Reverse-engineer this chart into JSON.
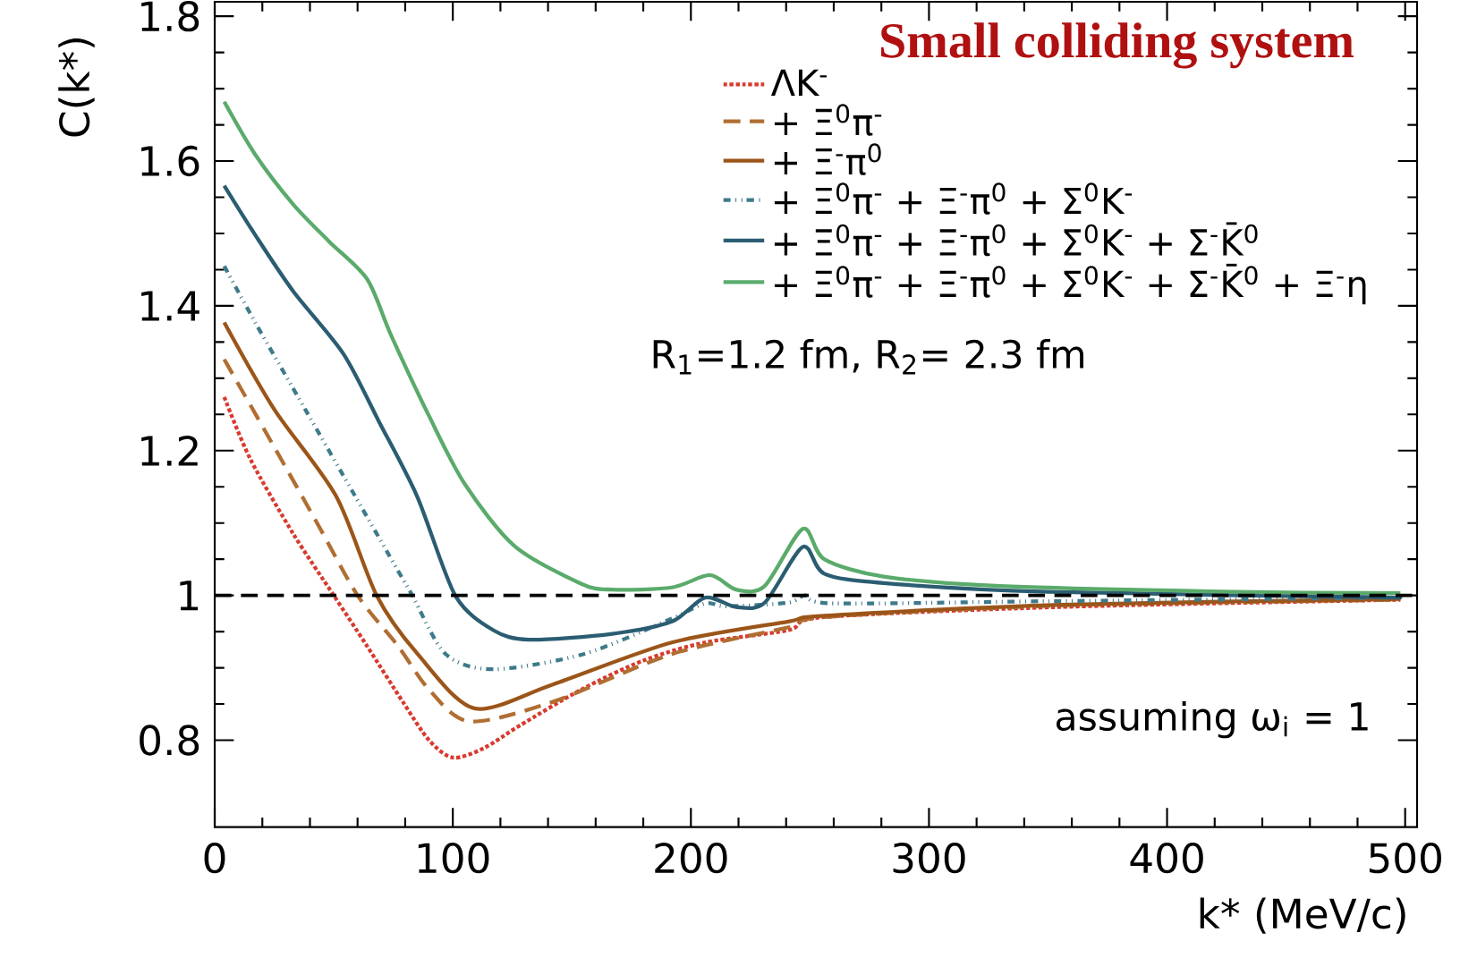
{
  "chart_data": {
    "type": "line",
    "title": "Small colliding system",
    "xlabel": "k* (MeV/c)",
    "ylabel": "C(k*)",
    "annotations": [
      "R$_{1}$=1.2 fm, R$_{2}$= 2.3 fm",
      "assuming ω$_{i}$ = 1"
    ],
    "xlim": [
      0,
      505
    ],
    "ylim": [
      0.68,
      1.82
    ],
    "xticks": [
      0,
      100,
      200,
      300,
      400,
      500
    ],
    "yticks": [
      0.8,
      1,
      1.2,
      1.4,
      1.6,
      1.8
    ],
    "legend": "top right",
    "grid": false,
    "marker": "none",
    "ref_lines": [
      {
        "axis": "y",
        "value": 1,
        "color": "#000000",
        "line_style": "dashed"
      }
    ],
    "series": [
      {
        "name": "ΛK$^{-}$",
        "color": "#d83a2e",
        "line_style": "dotted",
        "x": [
          4,
          15,
          33,
          50,
          64,
          79,
          90,
          100,
          113,
          128,
          154,
          180,
          206,
          241,
          256,
          355,
          498
        ],
        "values": [
          1.274,
          1.188,
          1.085,
          1.0,
          0.93,
          0.853,
          0.8,
          0.776,
          0.789,
          0.82,
          0.87,
          0.91,
          0.935,
          0.952,
          0.97,
          0.984,
          0.994
        ]
      },
      {
        "name": "+ Ξ$^{0}$π$^{-}$",
        "color": "#b06e32",
        "line_style": "dashed",
        "x": [
          4,
          25,
          43,
          60,
          77,
          90,
          107,
          142,
          192,
          241,
          256,
          355,
          498
        ],
        "values": [
          1.326,
          1.205,
          1.1,
          1.0,
          0.93,
          0.87,
          0.826,
          0.853,
          0.919,
          0.956,
          0.97,
          0.986,
          0.994
        ]
      },
      {
        "name": "+ Ξ$^{-}$π$^{0}$",
        "color": "#9c5519",
        "line_style": "solid",
        "x": [
          4,
          25,
          51,
          68,
          85,
          109,
          142,
          192,
          241,
          256,
          355,
          498
        ],
        "values": [
          1.377,
          1.257,
          1.137,
          1.0,
          0.92,
          0.844,
          0.877,
          0.935,
          0.964,
          0.972,
          0.987,
          0.995
        ]
      },
      {
        "name": "+ Ξ$^{0}$π$^{-}$ + Ξ$^{-}$π$^{0}$ + Σ$^{0}$K$^{-}$",
        "color": "#3d7a8a",
        "line_style": "dashdotted",
        "x": [
          4,
          17,
          38,
          59,
          77,
          83,
          97,
          117,
          155,
          192,
          206,
          215,
          241,
          248,
          260,
          350,
          498
        ],
        "values": [
          1.455,
          1.377,
          1.257,
          1.137,
          1.034,
          1.0,
          0.919,
          0.898,
          0.919,
          0.968,
          0.989,
          0.985,
          0.99,
          1.0,
          0.989,
          0.992,
          0.997
        ]
      },
      {
        "name": "+ Ξ$^{0}$π$^{-}$ + Ξ$^{-}$π$^{0}$ + Σ$^{0}$K$^{-}$ + Σ$^{-}$K̄$^{0}$",
        "color": "#2b5d72",
        "line_style": "solid",
        "x": [
          4,
          17,
          33,
          54,
          69,
          85,
          101,
          117,
          132,
          167,
          192,
          206,
          219,
          231,
          247,
          256,
          281,
          350,
          498
        ],
        "values": [
          1.566,
          1.498,
          1.42,
          1.334,
          1.24,
          1.137,
          1.0,
          0.952,
          0.939,
          0.947,
          0.964,
          0.997,
          0.984,
          0.99,
          1.067,
          1.03,
          1.017,
          1.005,
          0.997
        ]
      },
      {
        "name": "+ Ξ$^{0}$π$^{-}$ + Ξ$^{-}$π$^{0}$ + Σ$^{0}$K$^{-}$ + Σ$^{-}$K̄$^{0}$ + Ξ$^{-}$η",
        "color": "#5aab6b",
        "line_style": "solid",
        "x": [
          4,
          17,
          33,
          48,
          64,
          74,
          90,
          105,
          126,
          154,
          167,
          192,
          208,
          219,
          231,
          247,
          256,
          281,
          330,
          429,
          498
        ],
        "values": [
          1.682,
          1.609,
          1.54,
          1.489,
          1.437,
          1.36,
          1.248,
          1.154,
          1.068,
          1.016,
          1.008,
          1.011,
          1.028,
          1.008,
          1.013,
          1.092,
          1.05,
          1.026,
          1.013,
          1.005,
          1.003
        ]
      }
    ]
  }
}
